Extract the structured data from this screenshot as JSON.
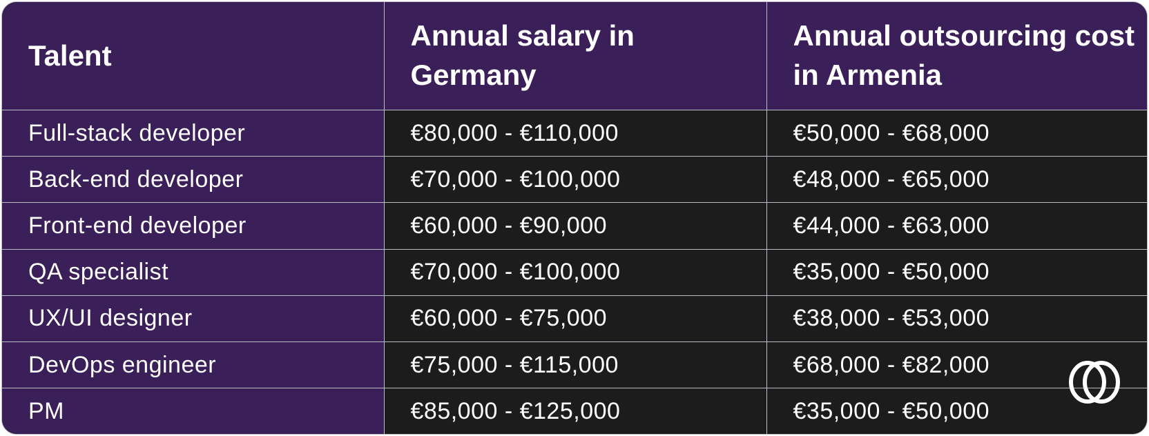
{
  "table": {
    "header": [
      "Talent",
      "Annual salary in Germany",
      "Annual outsourcing cost in Armenia"
    ],
    "rows": [
      [
        "Full-stack developer",
        "€80,000 - €110,000",
        "€50,000 - €68,000"
      ],
      [
        "Back-end developer",
        "€70,000 - €100,000",
        "€48,000 - €65,000"
      ],
      [
        "Front-end developer",
        "€60,000 - €90,000",
        "€44,000 - €63,000"
      ],
      [
        "QA specialist",
        "€70,000 - €100,000",
        "€35,000 - €50,000"
      ],
      [
        "UX/UI designer",
        "€60,000 - €75,000",
        "€38,000 - €53,000"
      ],
      [
        "DevOps engineer",
        "€75,000 - €115,000",
        "€68,000 - €82,000"
      ],
      [
        "PM",
        "€85,000 - €125,000",
        "€35,000 - €50,000"
      ]
    ]
  }
}
